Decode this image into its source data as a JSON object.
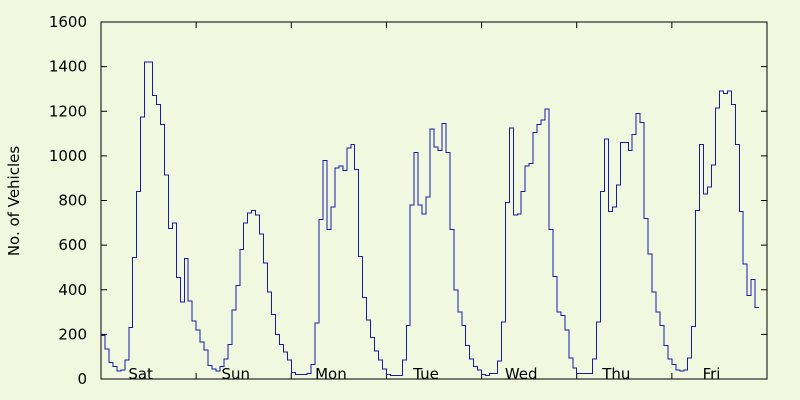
{
  "chart_data": {
    "type": "line",
    "style": "step",
    "title": "",
    "xlabel": "",
    "ylabel": "No. of Vehicles",
    "ylim": [
      0,
      1600
    ],
    "yticks": [
      0,
      200,
      400,
      600,
      800,
      1000,
      1200,
      1400,
      1600
    ],
    "x_unit": "hour of week",
    "xlim": [
      0,
      168
    ],
    "day_labels": [
      "Sat",
      "Sun",
      "Mon",
      "Tue",
      "Wed",
      "Thu",
      "Fri"
    ],
    "grid": false,
    "colors": {
      "background": "#f0f8e0",
      "line": "#1a1aa6",
      "axes": "#000000"
    },
    "series": [
      {
        "values": [
          195,
          135,
          75,
          55,
          35,
          40,
          85,
          230,
          545,
          840,
          1175,
          1420,
          1420,
          1270,
          1230,
          1140,
          915,
          675,
          700,
          455,
          345,
          540,
          350,
          260,
          220,
          165,
          130,
          60,
          45,
          35,
          55,
          90,
          155,
          310,
          420,
          580,
          700,
          745,
          755,
          735,
          650,
          520,
          390,
          290,
          200,
          155,
          120,
          85,
          30,
          20,
          20,
          20,
          25,
          65,
          250,
          715,
          980,
          670,
          770,
          945,
          955,
          935,
          1035,
          1050,
          940,
          550,
          365,
          265,
          185,
          125,
          85,
          45,
          20,
          15,
          15,
          15,
          85,
          240,
          780,
          1015,
          780,
          740,
          815,
          1120,
          1040,
          1025,
          1145,
          1015,
          670,
          400,
          300,
          240,
          150,
          90,
          55,
          40,
          20,
          15,
          25,
          25,
          80,
          255,
          790,
          1125,
          735,
          740,
          840,
          955,
          965,
          1105,
          1140,
          1160,
          1210,
          670,
          460,
          300,
          285,
          220,
          95,
          50,
          25,
          25,
          25,
          25,
          90,
          255,
          840,
          1075,
          750,
          770,
          870,
          1060,
          1060,
          1025,
          1095,
          1190,
          1150,
          720,
          560,
          390,
          300,
          240,
          150,
          90,
          65,
          40,
          35,
          40,
          95,
          235,
          755,
          1050,
          830,
          860,
          960,
          1215,
          1290,
          1280,
          1290,
          1230,
          1050,
          750,
          515,
          375,
          445,
          320
        ]
      }
    ]
  }
}
